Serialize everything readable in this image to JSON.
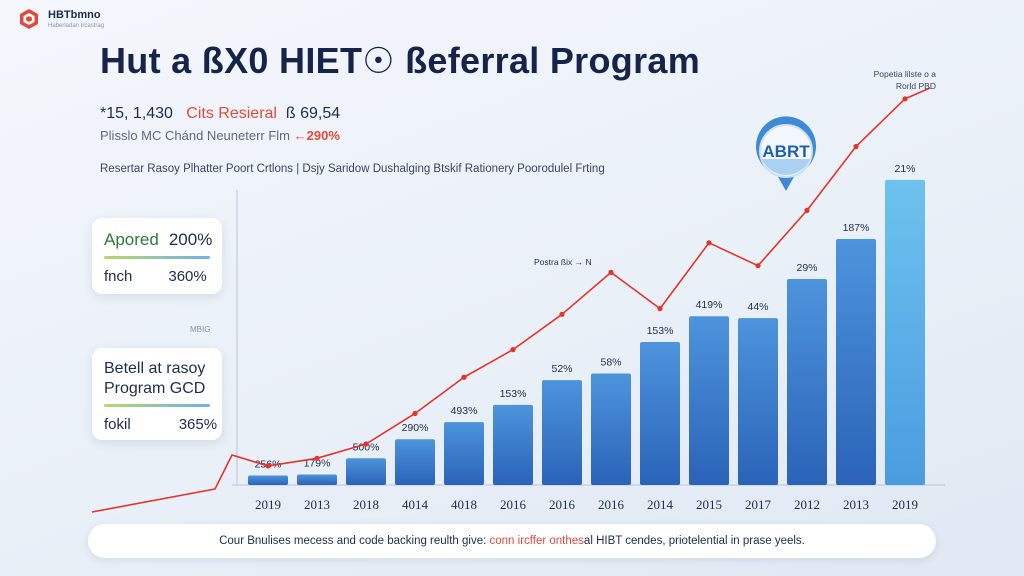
{
  "brand": {
    "name": "HBTbmno",
    "tagline": "Haberladan Ircastrag"
  },
  "title": "Hut a ßX0 HIET☉ ßeferral Program",
  "stats": {
    "line1_a": "*15, 1,430",
    "line1_b": "Cits Resieral",
    "line1_c": "ß 69,54",
    "line2_a": "Plisslo MC Chánd Neuneterr Flm",
    "line2_b": "←290%"
  },
  "description": "Resertar Rasoy Plhatter Poort Crtlons | Dsjy Saridow Dushalging Btskif Rationery Poorodulel Frting",
  "cards": {
    "card1": {
      "row1_label": "Apored",
      "row1_value": "200%",
      "row2_label": "fnch",
      "row2_value": "360%"
    },
    "tag": "MBIG",
    "card2": {
      "line1": "Betell at rasoy",
      "line2": "Program GCD",
      "line3_label": "fokil",
      "line3_value": "365%"
    }
  },
  "corner_note": {
    "line1": "Popetia lilste o a",
    "line2": "Rorld PBD"
  },
  "badge_text": "ABRT",
  "line_annotation": "Postra ßix → N",
  "footer": {
    "part1": "Cour Bnulises mecess and code backing reulth give:",
    "highlight": "conn ircffer onthes",
    "part2": "al HIBT cendes, priotelential in prase yeels."
  },
  "colors": {
    "bar_top": "#4d94dc",
    "bar_bottom": "#2a63b8",
    "bar_last_top": "#6ec2ee",
    "line": "#e5332a",
    "accent": "#e24a3b"
  },
  "chart_data": {
    "type": "bar",
    "categories": [
      "2019",
      "2013",
      "2018",
      "4014",
      "4018",
      "2016",
      "2016",
      "2016",
      "2014",
      "2015",
      "2017",
      "2012",
      "2013",
      "2019"
    ],
    "series": [
      {
        "values": [
          10,
          11,
          28,
          48,
          66,
          84,
          110,
          117,
          150,
          177,
          175,
          216,
          258,
          320
        ]
      },
      {
        "values": [
          20,
          28,
          43,
          75,
          113,
          142,
          179,
          223,
          185,
          254,
          230,
          288,
          355,
          405
        ]
      }
    ],
    "data_labels": [
      "256%",
      "179%",
      "500%",
      "290%",
      "493%",
      "153%",
      "52%",
      "58%",
      "153%",
      "419%",
      "44%",
      "29%",
      "187%",
      "21%"
    ],
    "ylim": [
      0,
      430
    ]
  }
}
